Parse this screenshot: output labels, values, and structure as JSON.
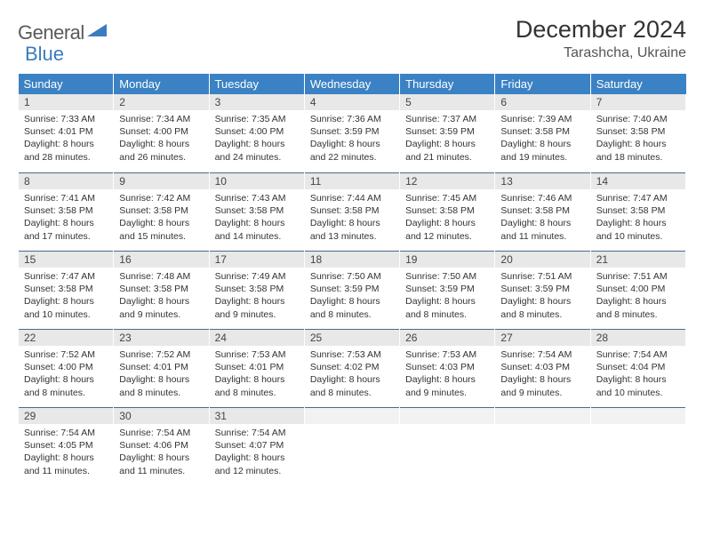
{
  "brand": {
    "general": "General",
    "blue": "Blue"
  },
  "title": "December 2024",
  "location": "Tarashcha, Ukraine",
  "colors": {
    "header_bg": "#3b82c4",
    "header_text": "#ffffff",
    "daynum_bg": "#e8e8e8",
    "rule": "#4a6a8a",
    "text": "#333333"
  },
  "weekdays": [
    "Sunday",
    "Monday",
    "Tuesday",
    "Wednesday",
    "Thursday",
    "Friday",
    "Saturday"
  ],
  "weeks": [
    [
      {
        "n": "1",
        "sr": "Sunrise: 7:33 AM",
        "ss": "Sunset: 4:01 PM",
        "dl": "Daylight: 8 hours and 28 minutes."
      },
      {
        "n": "2",
        "sr": "Sunrise: 7:34 AM",
        "ss": "Sunset: 4:00 PM",
        "dl": "Daylight: 8 hours and 26 minutes."
      },
      {
        "n": "3",
        "sr": "Sunrise: 7:35 AM",
        "ss": "Sunset: 4:00 PM",
        "dl": "Daylight: 8 hours and 24 minutes."
      },
      {
        "n": "4",
        "sr": "Sunrise: 7:36 AM",
        "ss": "Sunset: 3:59 PM",
        "dl": "Daylight: 8 hours and 22 minutes."
      },
      {
        "n": "5",
        "sr": "Sunrise: 7:37 AM",
        "ss": "Sunset: 3:59 PM",
        "dl": "Daylight: 8 hours and 21 minutes."
      },
      {
        "n": "6",
        "sr": "Sunrise: 7:39 AM",
        "ss": "Sunset: 3:58 PM",
        "dl": "Daylight: 8 hours and 19 minutes."
      },
      {
        "n": "7",
        "sr": "Sunrise: 7:40 AM",
        "ss": "Sunset: 3:58 PM",
        "dl": "Daylight: 8 hours and 18 minutes."
      }
    ],
    [
      {
        "n": "8",
        "sr": "Sunrise: 7:41 AM",
        "ss": "Sunset: 3:58 PM",
        "dl": "Daylight: 8 hours and 17 minutes."
      },
      {
        "n": "9",
        "sr": "Sunrise: 7:42 AM",
        "ss": "Sunset: 3:58 PM",
        "dl": "Daylight: 8 hours and 15 minutes."
      },
      {
        "n": "10",
        "sr": "Sunrise: 7:43 AM",
        "ss": "Sunset: 3:58 PM",
        "dl": "Daylight: 8 hours and 14 minutes."
      },
      {
        "n": "11",
        "sr": "Sunrise: 7:44 AM",
        "ss": "Sunset: 3:58 PM",
        "dl": "Daylight: 8 hours and 13 minutes."
      },
      {
        "n": "12",
        "sr": "Sunrise: 7:45 AM",
        "ss": "Sunset: 3:58 PM",
        "dl": "Daylight: 8 hours and 12 minutes."
      },
      {
        "n": "13",
        "sr": "Sunrise: 7:46 AM",
        "ss": "Sunset: 3:58 PM",
        "dl": "Daylight: 8 hours and 11 minutes."
      },
      {
        "n": "14",
        "sr": "Sunrise: 7:47 AM",
        "ss": "Sunset: 3:58 PM",
        "dl": "Daylight: 8 hours and 10 minutes."
      }
    ],
    [
      {
        "n": "15",
        "sr": "Sunrise: 7:47 AM",
        "ss": "Sunset: 3:58 PM",
        "dl": "Daylight: 8 hours and 10 minutes."
      },
      {
        "n": "16",
        "sr": "Sunrise: 7:48 AM",
        "ss": "Sunset: 3:58 PM",
        "dl": "Daylight: 8 hours and 9 minutes."
      },
      {
        "n": "17",
        "sr": "Sunrise: 7:49 AM",
        "ss": "Sunset: 3:58 PM",
        "dl": "Daylight: 8 hours and 9 minutes."
      },
      {
        "n": "18",
        "sr": "Sunrise: 7:50 AM",
        "ss": "Sunset: 3:59 PM",
        "dl": "Daylight: 8 hours and 8 minutes."
      },
      {
        "n": "19",
        "sr": "Sunrise: 7:50 AM",
        "ss": "Sunset: 3:59 PM",
        "dl": "Daylight: 8 hours and 8 minutes."
      },
      {
        "n": "20",
        "sr": "Sunrise: 7:51 AM",
        "ss": "Sunset: 3:59 PM",
        "dl": "Daylight: 8 hours and 8 minutes."
      },
      {
        "n": "21",
        "sr": "Sunrise: 7:51 AM",
        "ss": "Sunset: 4:00 PM",
        "dl": "Daylight: 8 hours and 8 minutes."
      }
    ],
    [
      {
        "n": "22",
        "sr": "Sunrise: 7:52 AM",
        "ss": "Sunset: 4:00 PM",
        "dl": "Daylight: 8 hours and 8 minutes."
      },
      {
        "n": "23",
        "sr": "Sunrise: 7:52 AM",
        "ss": "Sunset: 4:01 PM",
        "dl": "Daylight: 8 hours and 8 minutes."
      },
      {
        "n": "24",
        "sr": "Sunrise: 7:53 AM",
        "ss": "Sunset: 4:01 PM",
        "dl": "Daylight: 8 hours and 8 minutes."
      },
      {
        "n": "25",
        "sr": "Sunrise: 7:53 AM",
        "ss": "Sunset: 4:02 PM",
        "dl": "Daylight: 8 hours and 8 minutes."
      },
      {
        "n": "26",
        "sr": "Sunrise: 7:53 AM",
        "ss": "Sunset: 4:03 PM",
        "dl": "Daylight: 8 hours and 9 minutes."
      },
      {
        "n": "27",
        "sr": "Sunrise: 7:54 AM",
        "ss": "Sunset: 4:03 PM",
        "dl": "Daylight: 8 hours and 9 minutes."
      },
      {
        "n": "28",
        "sr": "Sunrise: 7:54 AM",
        "ss": "Sunset: 4:04 PM",
        "dl": "Daylight: 8 hours and 10 minutes."
      }
    ],
    [
      {
        "n": "29",
        "sr": "Sunrise: 7:54 AM",
        "ss": "Sunset: 4:05 PM",
        "dl": "Daylight: 8 hours and 11 minutes."
      },
      {
        "n": "30",
        "sr": "Sunrise: 7:54 AM",
        "ss": "Sunset: 4:06 PM",
        "dl": "Daylight: 8 hours and 11 minutes."
      },
      {
        "n": "31",
        "sr": "Sunrise: 7:54 AM",
        "ss": "Sunset: 4:07 PM",
        "dl": "Daylight: 8 hours and 12 minutes."
      },
      null,
      null,
      null,
      null
    ]
  ]
}
